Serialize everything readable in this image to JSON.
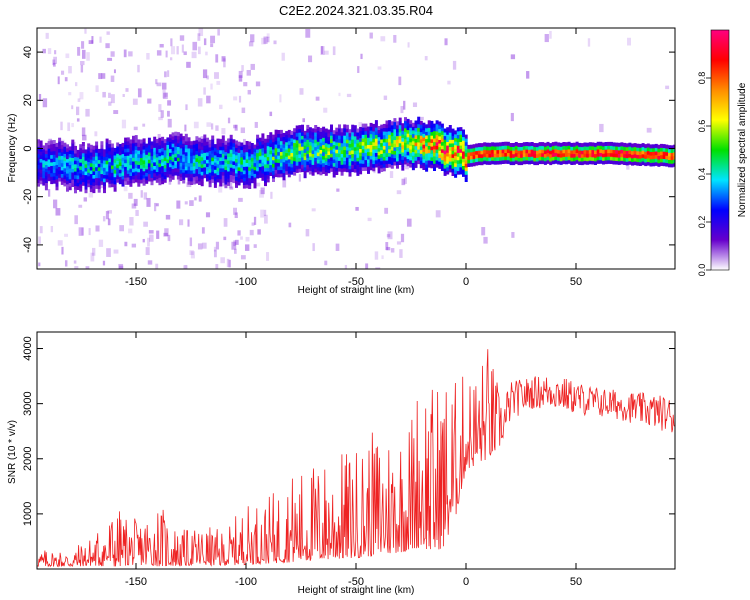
{
  "figure_title": "C2E2.2024.321.03.35.R04",
  "chart_data": [
    {
      "type": "heatmap",
      "title": "C2E2.2024.321.03.35.R04",
      "xlabel": "Height of straight line (km)",
      "ylabel": "Frequency (Hz)",
      "xlim": [
        -195,
        95
      ],
      "ylim": [
        -50,
        50
      ],
      "x_ticks": [
        -150,
        -100,
        -50,
        0,
        50
      ],
      "x_tick_labels": [
        "-150",
        "-100",
        "-50",
        "0",
        "50"
      ],
      "y_ticks": [
        -40,
        -20,
        0,
        20,
        40
      ],
      "y_tick_labels": [
        "-40",
        "-20",
        "0",
        "20",
        "40"
      ],
      "grid": false,
      "colorbar": {
        "label": "Normalized spectral amplitude",
        "range": [
          0.0,
          1.0
        ],
        "ticks": [
          0.0,
          0.2,
          0.4,
          0.6,
          0.8
        ],
        "tick_labels": [
          "0.0",
          "0.2",
          "0.4",
          "0.6",
          "0.8"
        ],
        "colormap": [
          "#ffffff",
          "#6600cc",
          "#0000ff",
          "#00e5ff",
          "#00e000",
          "#ffff00",
          "#ff8c00",
          "#ff0000",
          "#ff0080"
        ]
      },
      "ridge": {
        "description_free": true,
        "x": [
          -195,
          -170,
          -150,
          -130,
          -100,
          -90,
          -80,
          -60,
          -40,
          -28,
          -20,
          -10,
          0,
          10,
          30,
          50,
          70,
          90,
          95
        ],
        "center_freq": [
          -6,
          -8,
          -5,
          -4,
          -6,
          -4,
          -1,
          -1,
          1,
          2,
          2,
          0,
          -3,
          -2,
          -2,
          -2,
          -2,
          -3,
          -3
        ],
        "amplitude": [
          0.35,
          0.45,
          0.45,
          0.45,
          0.45,
          0.5,
          0.55,
          0.55,
          0.6,
          0.65,
          0.8,
          0.9,
          0.85,
          0.9,
          0.92,
          0.95,
          0.95,
          0.9,
          0.85
        ]
      }
    },
    {
      "type": "line",
      "xlabel": "Height of straight line (km)",
      "ylabel": "SNR (10 * v/v)",
      "xlim": [
        -195,
        95
      ],
      "ylim": [
        0,
        4300
      ],
      "x_ticks": [
        -150,
        -100,
        -50,
        0,
        50
      ],
      "x_tick_labels": [
        "-150",
        "-100",
        "-50",
        "0",
        "50"
      ],
      "y_ticks": [
        1000,
        2000,
        3000,
        4000
      ],
      "y_tick_labels": [
        "1000",
        "2000",
        "3000",
        "4000"
      ],
      "grid": false,
      "series": [
        {
          "color": "#ee2222",
          "envelope": {
            "x": [
              -195,
              -180,
              -170,
              -160,
              -150,
              -140,
              -130,
              -120,
              -110,
              -100,
              -90,
              -80,
              -70,
              -60,
              -50,
              -40,
              -30,
              -25,
              -20,
              -15,
              -10,
              -5,
              0,
              5,
              10,
              15,
              20,
              25,
              30,
              40,
              50,
              60,
              70,
              80,
              90,
              95
            ],
            "low": [
              50,
              40,
              60,
              40,
              80,
              50,
              60,
              70,
              60,
              80,
              100,
              120,
              150,
              180,
              200,
              250,
              300,
              350,
              400,
              300,
              400,
              900,
              1800,
              1900,
              2000,
              2200,
              2700,
              2800,
              2900,
              2900,
              2800,
              2750,
              2700,
              2600,
              2500,
              2400
            ],
            "high": [
              350,
              380,
              600,
              1150,
              900,
              1250,
              700,
              800,
              700,
              1200,
              1300,
              1750,
              1950,
              2100,
              2250,
              2600,
              2750,
              2900,
              4000,
              3400,
              3700,
              3500,
              3600,
              3700,
              4150,
              3300,
              3400,
              3450,
              3500,
              3550,
              3400,
              3300,
              3250,
              3200,
              3150,
              3100
            ]
          }
        }
      ]
    }
  ]
}
